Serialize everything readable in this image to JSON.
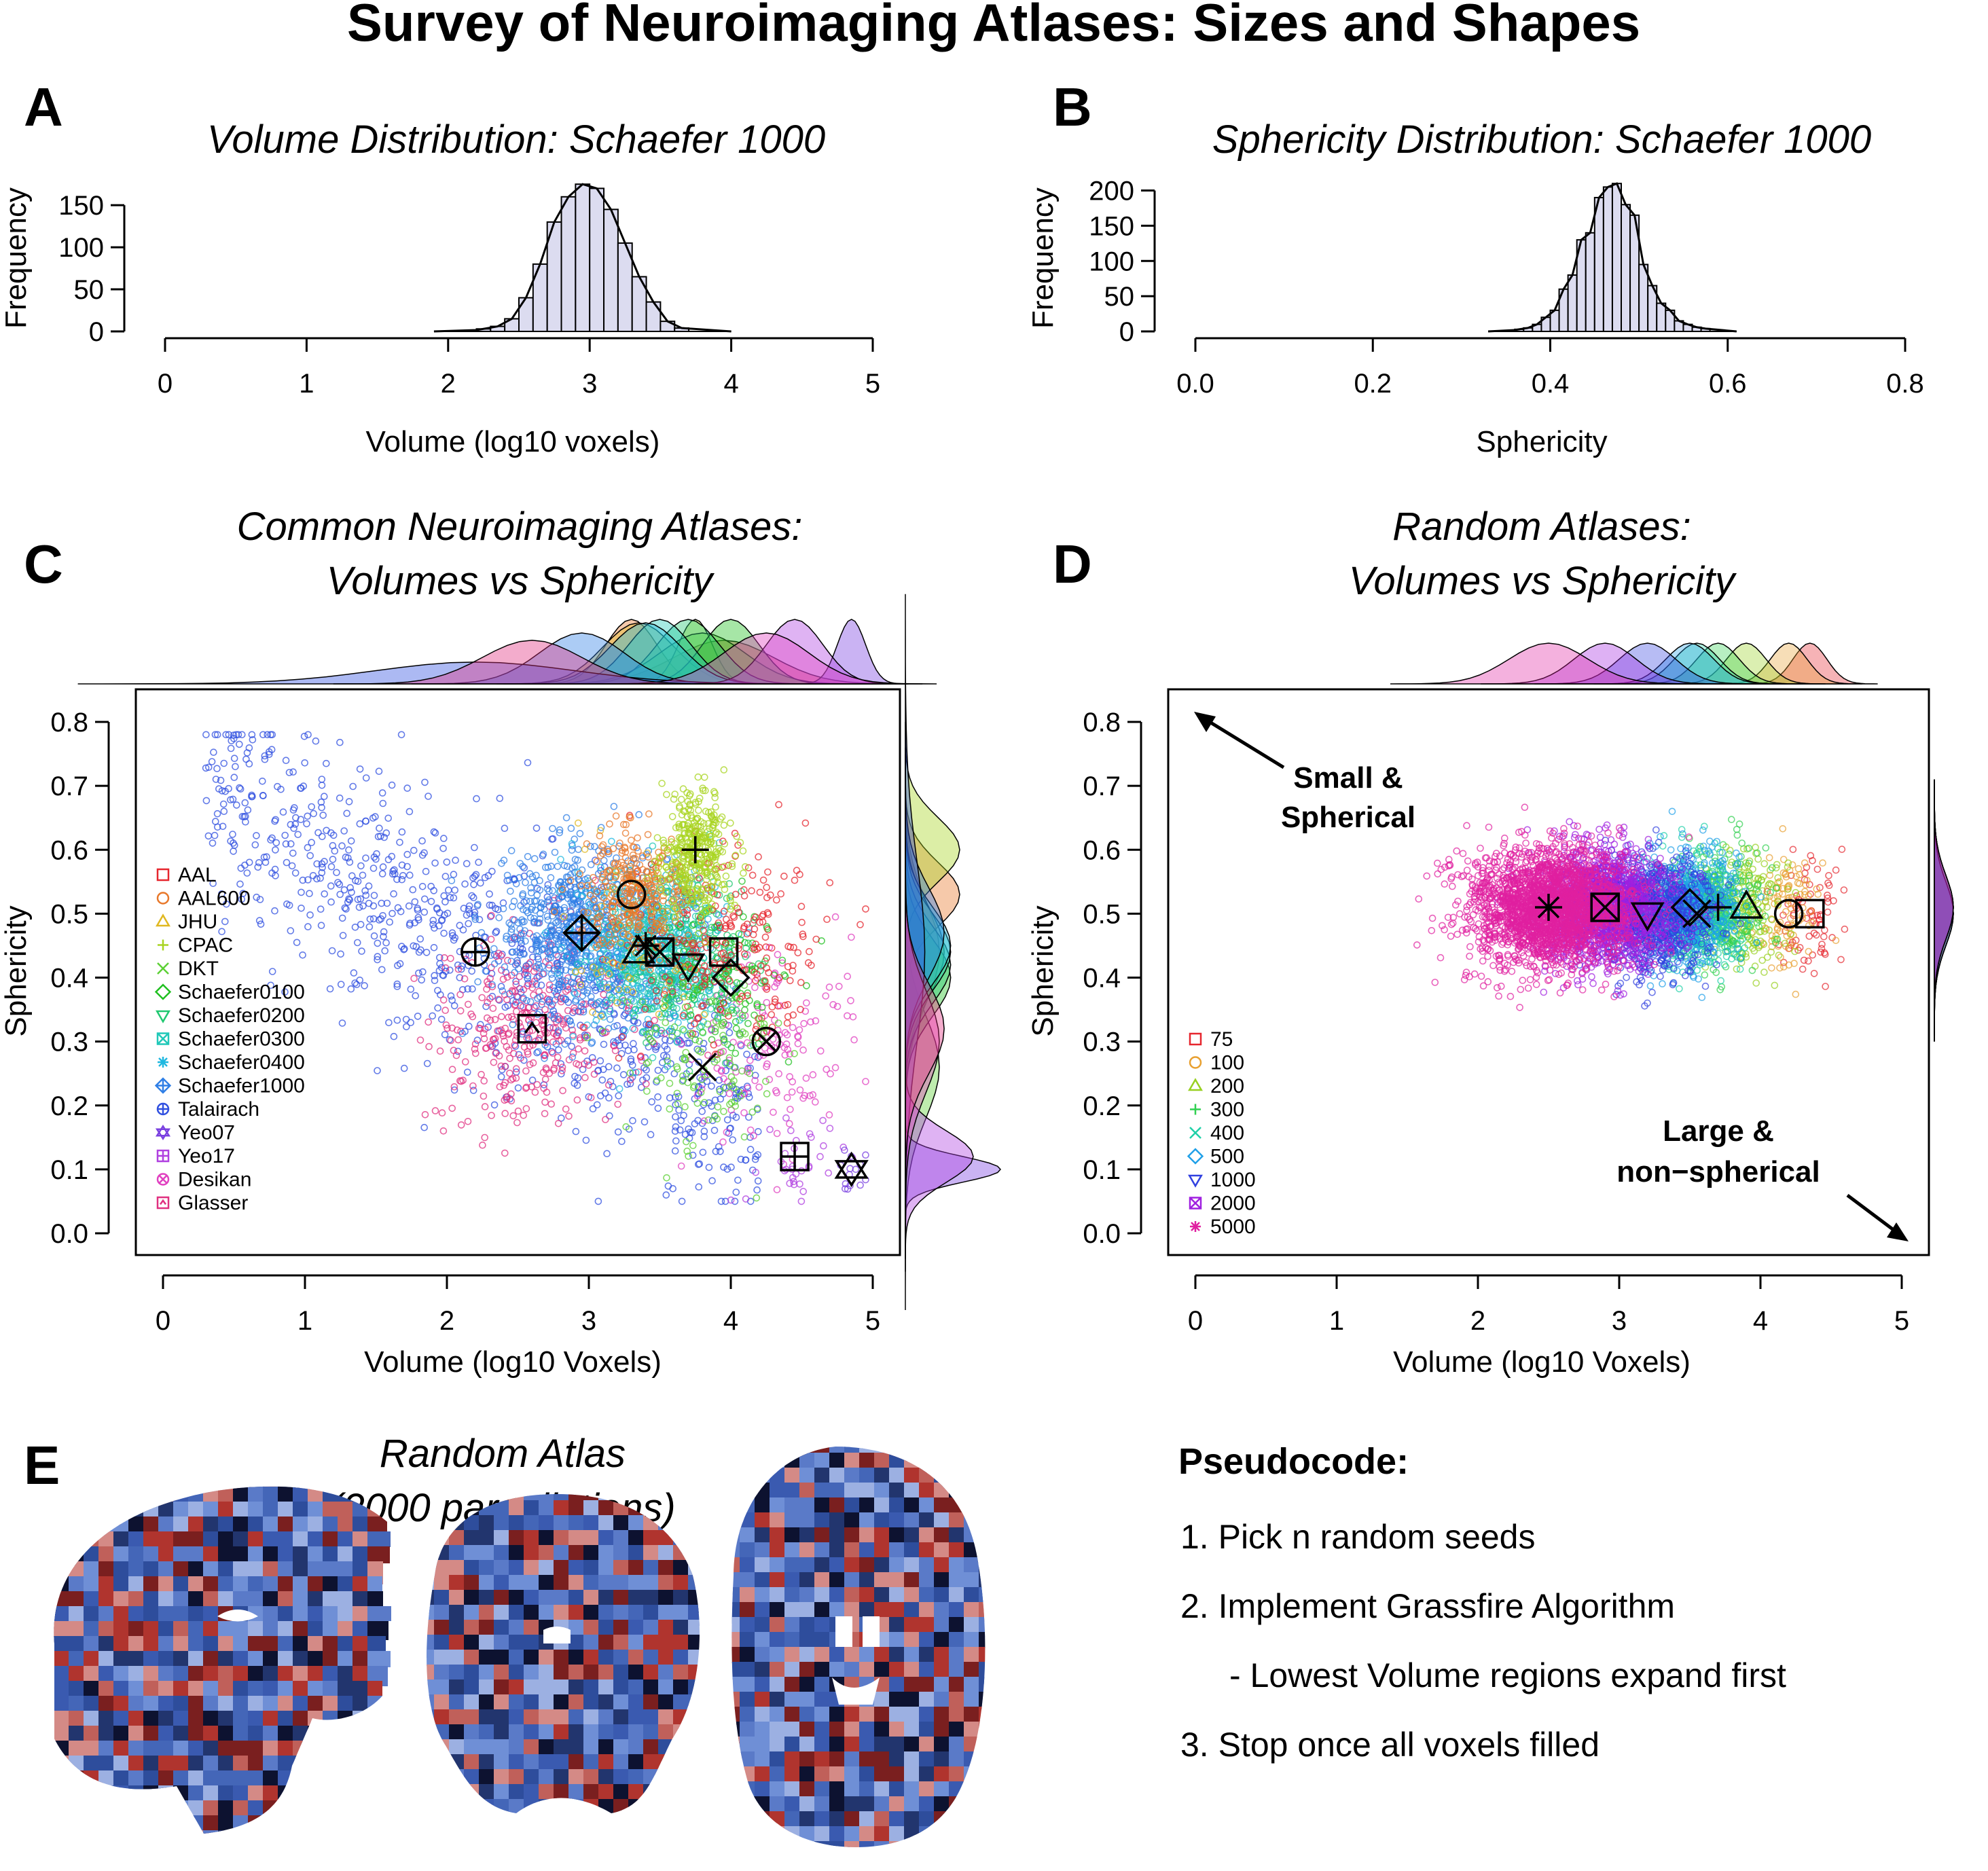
{
  "title": "Survey of Neuroimaging Atlases: Sizes and Shapes",
  "colors": {
    "hist_fill": "#dcdcf0",
    "AAL": "#e6262e",
    "AAL600": "#e8782a",
    "JHU": "#e0b820",
    "CPAC": "#a8d420",
    "DKT": "#5cd034",
    "Schaefer0100": "#20c020",
    "Schaefer0200": "#20c870",
    "Schaefer0300": "#20c8b8",
    "Schaefer0400": "#20b8e0",
    "Schaefer1000": "#2f7fe6",
    "Talairach": "#3050e0",
    "Yeo07": "#7a40e0",
    "Yeo17": "#b040e0",
    "Desikan": "#e040c0",
    "Glasser": "#e03080",
    "atlas_red": "#b0342e",
    "atlas_blue": "#2e4d9c"
  },
  "panelA": {
    "letter": "A",
    "title": "Volume Distribution: Schaefer 1000",
    "xlabel": "Volume (log10 voxels)",
    "ylabel": "Frequency",
    "xticks": [
      "0",
      "1",
      "2",
      "3",
      "4",
      "5"
    ],
    "yticks": [
      "0",
      "50",
      "100",
      "150"
    ]
  },
  "panelB": {
    "letter": "B",
    "title": "Sphericity Distribution: Schaefer 1000",
    "xlabel": "Sphericity",
    "ylabel": "Frequency",
    "xticks": [
      "0.0",
      "0.2",
      "0.4",
      "0.6",
      "0.8"
    ],
    "yticks": [
      "0",
      "50",
      "100",
      "150",
      "200"
    ]
  },
  "panelC": {
    "letter": "C",
    "title_line1": "Common Neuroimaging Atlases:",
    "title_line2": "Volumes vs Sphericity",
    "xlabel": "Volume (log10 Voxels)",
    "ylabel": "Sphericity",
    "xticks": [
      "0",
      "1",
      "2",
      "3",
      "4",
      "5"
    ],
    "yticks": [
      "0.0",
      "0.1",
      "0.2",
      "0.3",
      "0.4",
      "0.5",
      "0.6",
      "0.7",
      "0.8"
    ],
    "legend": [
      "AAL",
      "AAL600",
      "JHU",
      "CPAC",
      "DKT",
      "Schaefer0100",
      "Schaefer0200",
      "Schaefer0300",
      "Schaefer0400",
      "Schaefer1000",
      "Talairach",
      "Yeo07",
      "Yeo17",
      "Desikan",
      "Glasser"
    ]
  },
  "panelD": {
    "letter": "D",
    "title_line1": "Random Atlases:",
    "title_line2": "Volumes vs Sphericity",
    "xlabel": "Volume (log10 Voxels)",
    "ylabel": "Sphericity",
    "xticks": [
      "0",
      "1",
      "2",
      "3",
      "4",
      "5"
    ],
    "yticks": [
      "0.0",
      "0.1",
      "0.2",
      "0.3",
      "0.4",
      "0.5",
      "0.6",
      "0.7",
      "0.8"
    ],
    "legend": [
      "75",
      "100",
      "200",
      "300",
      "400",
      "500",
      "1000",
      "2000",
      "5000"
    ],
    "annot1_line1": "Small &",
    "annot1_line2": "Spherical",
    "annot2_line1": "Large &",
    "annot2_line2": "non−spherical"
  },
  "panelE": {
    "letter": "E",
    "title_line1": "Random Atlas",
    "title_line2": "(2000 parcellations)"
  },
  "pseudocode": {
    "heading": "Pseudocode:",
    "lines": [
      "1. Pick n random seeds",
      "2. Implement Grassfire Algorithm",
      "- Lowest Volume regions expand first",
      "3. Stop once all voxels filled"
    ]
  },
  "chart_data": [
    {
      "type": "bar",
      "title": "Volume Distribution: Schaefer 1000",
      "xlabel": "Volume (log10 voxels)",
      "ylabel": "Frequency",
      "xlim": [
        0,
        5
      ],
      "ylim": [
        0,
        180
      ],
      "bin_width": 0.1,
      "x": [
        2.2,
        2.3,
        2.4,
        2.5,
        2.6,
        2.7,
        2.8,
        2.9,
        3.0,
        3.1,
        3.2,
        3.3,
        3.4,
        3.5,
        3.6
      ],
      "values": [
        3,
        6,
        15,
        40,
        80,
        130,
        160,
        175,
        170,
        145,
        105,
        65,
        35,
        12,
        4
      ]
    },
    {
      "type": "bar",
      "title": "Sphericity Distribution: Schaefer 1000",
      "xlabel": "Sphericity",
      "ylabel": "Frequency",
      "xlim": [
        0,
        0.8
      ],
      "ylim": [
        0,
        215
      ],
      "bin_width": 0.01,
      "x": [
        0.36,
        0.37,
        0.38,
        0.39,
        0.4,
        0.41,
        0.42,
        0.43,
        0.44,
        0.45,
        0.46,
        0.47,
        0.48,
        0.49,
        0.5,
        0.51,
        0.52,
        0.53,
        0.54,
        0.55,
        0.56,
        0.57
      ],
      "values": [
        3,
        5,
        10,
        20,
        30,
        60,
        80,
        130,
        140,
        190,
        205,
        210,
        180,
        165,
        95,
        65,
        40,
        30,
        15,
        10,
        6,
        4
      ]
    },
    {
      "type": "scatter",
      "title": "Common Neuroimaging Atlases: Volumes vs Sphericity",
      "xlabel": "Volume (log10 Voxels)",
      "ylabel": "Sphericity",
      "xlim": [
        0,
        5
      ],
      "ylim": [
        0,
        0.8
      ],
      "series": [
        {
          "name": "AAL",
          "median": [
            3.95,
            0.44
          ]
        },
        {
          "name": "AAL600",
          "median": [
            3.3,
            0.53
          ]
        },
        {
          "name": "JHU",
          "median": [
            3.35,
            0.44
          ]
        },
        {
          "name": "CPAC",
          "median": [
            3.75,
            0.6
          ]
        },
        {
          "name": "DKT",
          "median": [
            3.8,
            0.26
          ]
        },
        {
          "name": "Schaefer0100",
          "median": [
            4.0,
            0.4
          ]
        },
        {
          "name": "Schaefer0200",
          "median": [
            3.7,
            0.42
          ]
        },
        {
          "name": "Schaefer0300",
          "median": [
            3.5,
            0.44
          ]
        },
        {
          "name": "Schaefer0400",
          "median": [
            3.4,
            0.45
          ]
        },
        {
          "name": "Schaefer1000",
          "median": [
            2.95,
            0.47
          ]
        },
        {
          "name": "Talairach",
          "median": [
            2.2,
            0.44
          ]
        },
        {
          "name": "Yeo07",
          "median": [
            4.85,
            0.1
          ]
        },
        {
          "name": "Yeo17",
          "median": [
            4.45,
            0.12
          ]
        },
        {
          "name": "Desikan",
          "median": [
            4.25,
            0.3
          ]
        },
        {
          "name": "Glasser",
          "median": [
            2.6,
            0.32
          ]
        }
      ]
    },
    {
      "type": "scatter",
      "title": "Random Atlases: Volumes vs Sphericity",
      "xlabel": "Volume (log10 Voxels)",
      "ylabel": "Sphericity",
      "xlim": [
        0,
        5
      ],
      "ylim": [
        0,
        0.8
      ],
      "series": [
        {
          "name": "75",
          "median": [
            4.35,
            0.5
          ]
        },
        {
          "name": "100",
          "median": [
            4.2,
            0.5
          ]
        },
        {
          "name": "200",
          "median": [
            3.9,
            0.51
          ]
        },
        {
          "name": "300",
          "median": [
            3.7,
            0.51
          ]
        },
        {
          "name": "400",
          "median": [
            3.55,
            0.5
          ]
        },
        {
          "name": "500",
          "median": [
            3.5,
            0.51
          ]
        },
        {
          "name": "1000",
          "median": [
            3.2,
            0.5
          ]
        },
        {
          "name": "2000",
          "median": [
            2.9,
            0.51
          ]
        },
        {
          "name": "5000",
          "median": [
            2.5,
            0.51
          ]
        }
      ]
    }
  ]
}
